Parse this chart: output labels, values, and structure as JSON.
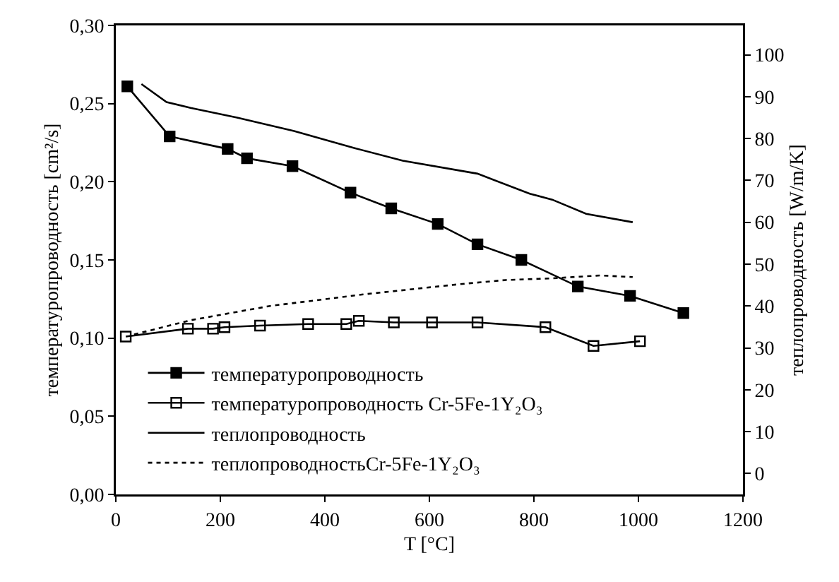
{
  "chart_data": {
    "type": "line",
    "xlabel": "T [°C]",
    "ylabel": "температуропроводность [cm²/s]",
    "y2label": "теплопроводность [W/m/K]",
    "xlim": [
      0,
      1200
    ],
    "xticks": [
      0,
      200,
      400,
      600,
      800,
      1000,
      1200
    ],
    "ylim": [
      0,
      0.3
    ],
    "yticks": [
      {
        "value": 0,
        "label": "0,00"
      },
      {
        "value": 0.05,
        "label": "0,05"
      },
      {
        "value": 0.1,
        "label": "0,10"
      },
      {
        "value": 0.15,
        "label": "0,15"
      },
      {
        "value": 0.2,
        "label": "0,20"
      },
      {
        "value": 0.25,
        "label": "0,25"
      },
      {
        "value": 0.3,
        "label": "0,30"
      }
    ],
    "y2lim": [
      -5,
      107
    ],
    "y2ticks": [
      0,
      10,
      20,
      30,
      40,
      50,
      60,
      70,
      80,
      90,
      100
    ],
    "grid": false,
    "legend": "bottom left",
    "series": [
      {
        "name": "температуропроводность",
        "color": "#000000",
        "marker": "square",
        "line_style": "solid",
        "x": [
          22,
          103,
          214,
          251,
          338,
          449,
          527,
          616,
          692,
          776,
          884,
          984,
          1086
        ],
        "values": [
          0.261,
          0.229,
          0.221,
          0.215,
          0.21,
          0.193,
          0.183,
          0.173,
          0.16,
          0.15,
          0.133,
          0.127,
          0.116
        ]
      },
      {
        "name": "температуропроводность Cr-5Fe-1Y₂O₃",
        "color": "#000000",
        "marker": "square",
        "line_style": "solid",
        "x": [
          19,
          138,
          186,
          208,
          276,
          368,
          441,
          465,
          532,
          605,
          692,
          822,
          914,
          1003
        ],
        "values": [
          0.101,
          0.106,
          0.106,
          0.107,
          0.108,
          0.109,
          0.109,
          0.111,
          0.11,
          0.11,
          0.11,
          0.107,
          0.095,
          0.098
        ]
      },
      {
        "name": "теплопроводность",
        "color": "#000000",
        "marker": "none",
        "line_style": "solid",
        "axis": "y2",
        "x": [
          49,
          97,
          143,
          232,
          341,
          457,
          549,
          692,
          792,
          835,
          900,
          989
        ],
        "values": [
          93,
          88.7,
          87.3,
          85,
          81.8,
          77.7,
          74.7,
          71.6,
          66.8,
          65.4,
          62,
          60
        ]
      },
      {
        "name": "теплопроводностьCr-5Fe-1Y₂O₃",
        "color": "#000000",
        "marker": "none",
        "line_style": "dotted",
        "axis": "y2",
        "x": [
          35,
          143,
          295,
          476,
          657,
          746,
          835,
          927,
          989
        ],
        "values": [
          33.2,
          36.6,
          40,
          42.8,
          45.2,
          46.2,
          46.6,
          47.3,
          46.9
        ]
      }
    ]
  }
}
